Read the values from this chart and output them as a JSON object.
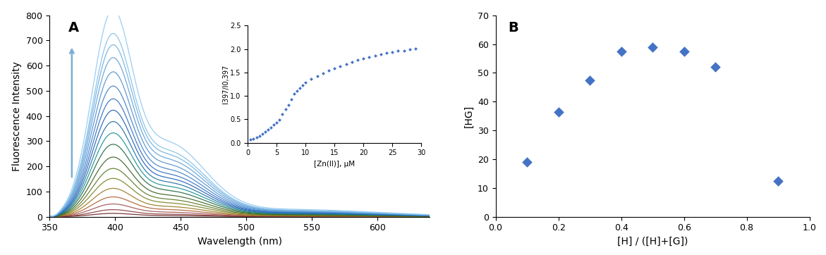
{
  "panel_A": {
    "label": "A",
    "xlabel": "Wavelength (nm)",
    "ylabel": "Fluorescence Intensity",
    "xlim": [
      350,
      640
    ],
    "ylim": [
      0,
      800
    ],
    "yticks": [
      0,
      100,
      200,
      300,
      400,
      500,
      600,
      700,
      800
    ],
    "xticks": [
      350,
      400,
      450,
      500,
      550,
      600
    ],
    "num_spectra": 19,
    "peak_wavelength": 397,
    "peak_values": [
      12,
      25,
      45,
      70,
      100,
      135,
      170,
      210,
      255,
      295,
      335,
      375,
      415,
      460,
      510,
      560,
      605,
      645,
      730
    ],
    "arrow_color": "#7aafd4",
    "inset": {
      "xlabel": "[Zn(II)], μM",
      "ylabel": "I397/I0,397",
      "xlim": [
        0,
        30
      ],
      "ylim": [
        0,
        2.5
      ],
      "yticks": [
        0,
        0.5,
        1.0,
        1.5,
        2.0,
        2.5
      ],
      "xticks": [
        0,
        5,
        10,
        15,
        20,
        25,
        30
      ],
      "x_data": [
        0.5,
        1,
        1.5,
        2,
        2.5,
        3,
        3.5,
        4,
        4.5,
        5,
        5.5,
        6,
        6.5,
        7,
        7.5,
        8,
        8.5,
        9,
        9.5,
        10,
        11,
        12,
        13,
        14,
        15,
        16,
        17,
        18,
        19,
        20,
        21,
        22,
        23,
        24,
        25,
        26,
        27,
        28,
        29
      ],
      "y_data": [
        0.07,
        0.09,
        0.12,
        0.15,
        0.19,
        0.24,
        0.28,
        0.33,
        0.38,
        0.43,
        0.49,
        0.61,
        0.71,
        0.81,
        0.92,
        1.04,
        1.11,
        1.17,
        1.23,
        1.29,
        1.36,
        1.42,
        1.48,
        1.54,
        1.59,
        1.63,
        1.68,
        1.72,
        1.76,
        1.79,
        1.82,
        1.86,
        1.88,
        1.91,
        1.94,
        1.96,
        1.97,
        1.99,
        2.01
      ],
      "marker_color": "#4472c4",
      "marker_size": 6
    }
  },
  "panel_B": {
    "label": "B",
    "xlabel": "[H] / ([H]+[G])",
    "ylabel": "[HG]",
    "xlim": [
      0,
      1
    ],
    "ylim": [
      0,
      70
    ],
    "yticks": [
      0,
      10,
      20,
      30,
      40,
      50,
      60,
      70
    ],
    "xticks": [
      0,
      0.2,
      0.4,
      0.6,
      0.8,
      1.0
    ],
    "x_data": [
      0.1,
      0.2,
      0.3,
      0.4,
      0.5,
      0.6,
      0.7,
      0.9
    ],
    "y_data": [
      19,
      36.5,
      47.5,
      57.5,
      59,
      57.5,
      52,
      12.5
    ],
    "marker_color": "#4472c4",
    "marker_size": 55
  },
  "bg_color": "#ffffff",
  "spectrum_colors": [
    "#6b2020",
    "#8b3a3a",
    "#a05252",
    "#b06030",
    "#9a7820",
    "#7a8020",
    "#5a7825",
    "#3a6020",
    "#206840",
    "#1a9090",
    "#2070a0",
    "#2060b8",
    "#3070c0",
    "#4080c8",
    "#5090d0",
    "#60a0d8",
    "#70b0e0",
    "#80c0e8",
    "#90c8f0"
  ]
}
